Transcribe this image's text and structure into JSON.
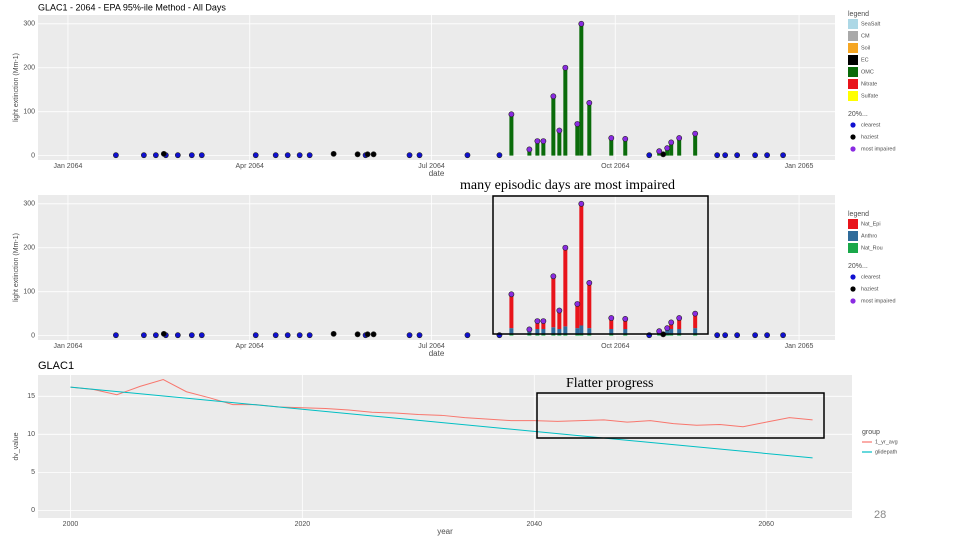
{
  "chart_data": [
    {
      "type": "stacked_bar",
      "title": "GLAC1 - 2064 - EPA 95%-ile Method - All Days",
      "xlabel": "date",
      "ylabel": "light extinction (Mm-1)",
      "x": [
        222,
        231,
        235,
        238,
        243,
        246,
        249,
        255,
        257,
        261,
        272,
        279,
        296,
        300,
        302,
        306,
        314
      ],
      "series": [
        {
          "name": "SeaSalt",
          "color": "#add8e6",
          "values": [
            0,
            0,
            0,
            0,
            0,
            0,
            0,
            0,
            0,
            0,
            0,
            0,
            0,
            0,
            0,
            0,
            0
          ]
        },
        {
          "name": "CM",
          "color": "#a9a9a9",
          "values": [
            0,
            0,
            0,
            0,
            0,
            0,
            0,
            0,
            0,
            0,
            0,
            0,
            0,
            0,
            0,
            0,
            0
          ]
        },
        {
          "name": "Soil",
          "color": "#f5a623",
          "values": [
            0,
            0,
            0,
            0,
            0,
            0,
            0,
            0,
            0,
            0,
            0,
            0,
            0,
            0,
            0,
            0,
            0
          ]
        },
        {
          "name": "EC",
          "color": "#000000",
          "values": [
            4,
            4,
            4,
            4,
            4,
            4,
            4,
            4,
            4,
            4,
            4,
            4,
            4,
            4,
            4,
            4,
            4
          ]
        },
        {
          "name": "OMC",
          "color": "#0a6b0a",
          "values": [
            90,
            10,
            29,
            29,
            131,
            53,
            196,
            68,
            296,
            116,
            36,
            34,
            6,
            13,
            26,
            36,
            46
          ]
        },
        {
          "name": "Nitrate",
          "color": "#e8141b",
          "values": [
            0,
            0,
            0,
            0,
            0,
            0,
            0,
            0,
            0,
            0,
            0,
            0,
            0,
            0,
            0,
            0,
            0
          ]
        },
        {
          "name": "Sulfate",
          "color": "#ffff00",
          "values": [
            0,
            0,
            0,
            0,
            0,
            0,
            0,
            0,
            0,
            0,
            0,
            0,
            0,
            0,
            0,
            0,
            0
          ]
        }
      ],
      "legend_title": "legend",
      "points_title": "20%...",
      "point_groups": [
        {
          "name": "clearest",
          "color": "#1010d0",
          "x": [
            24,
            38,
            44,
            49,
            55,
            62,
            67,
            94,
            104,
            110,
            116,
            121,
            149,
            171,
            176,
            200,
            216,
            291,
            325,
            329,
            335,
            344,
            350,
            358
          ],
          "y": [
            1,
            1,
            1,
            1,
            1,
            1,
            1,
            1,
            1,
            1,
            1,
            1,
            1,
            1,
            1,
            1,
            1,
            1,
            1,
            1,
            1,
            1,
            1,
            1
          ]
        },
        {
          "name": "haziest",
          "color": "#000000",
          "x": [
            48,
            133,
            145,
            150,
            153,
            298
          ],
          "y": [
            4,
            4,
            3,
            3,
            3,
            3
          ]
        },
        {
          "name": "most impaired",
          "color": "#8a2be2",
          "x": [
            222,
            231,
            235,
            238,
            243,
            246,
            249,
            255,
            257,
            261,
            272,
            279,
            296,
            300,
            302,
            306,
            314
          ],
          "y": [
            94,
            14,
            33,
            33,
            135,
            57,
            200,
            72,
            300,
            120,
            40,
            38,
            10,
            17,
            30,
            40,
            50
          ]
        }
      ],
      "xlim": [
        -15,
        384
      ],
      "xticks": [
        {
          "value": 0,
          "label": "Jan 2064"
        },
        {
          "value": 91,
          "label": "Apr 2064"
        },
        {
          "value": 182,
          "label": "Jul 2064"
        },
        {
          "value": 274,
          "label": "Oct 2064"
        },
        {
          "value": 366,
          "label": "Jan 2065"
        }
      ],
      "ylim": [
        -10,
        320
      ],
      "yticks": [
        0,
        100,
        200,
        300
      ],
      "grid": true
    },
    {
      "type": "stacked_bar",
      "xlabel": "date",
      "ylabel": "light extinction (Mm-1)",
      "x": [
        222,
        231,
        235,
        238,
        243,
        246,
        249,
        255,
        257,
        261,
        272,
        279,
        296,
        300,
        302,
        306,
        314
      ],
      "series": [
        {
          "name": "Nat_Epi",
          "color": "#e8141b",
          "values": [
            77,
            1,
            18,
            18,
            116,
            42,
            179,
            55,
            277,
            103,
            25,
            23,
            1,
            4,
            15,
            25,
            33
          ]
        },
        {
          "name": "Anthro",
          "color": "#2f6b9a",
          "values": [
            12,
            8,
            10,
            10,
            14,
            10,
            16,
            12,
            18,
            12,
            10,
            10,
            4,
            8,
            10,
            10,
            12
          ]
        },
        {
          "name": "Nat_Rou",
          "color": "#1aa84a",
          "values": [
            5,
            5,
            5,
            5,
            5,
            5,
            5,
            5,
            5,
            5,
            5,
            5,
            5,
            5,
            5,
            5,
            5
          ]
        }
      ],
      "legend_title": "legend",
      "points_title": "20%...",
      "point_groups": [
        {
          "name": "clearest",
          "color": "#1010d0",
          "x": [
            24,
            38,
            44,
            49,
            55,
            62,
            67,
            94,
            104,
            110,
            116,
            121,
            149,
            171,
            176,
            200,
            216,
            291,
            325,
            329,
            335,
            344,
            350,
            358
          ],
          "y": [
            1,
            1,
            1,
            1,
            1,
            1,
            1,
            1,
            1,
            1,
            1,
            1,
            1,
            1,
            1,
            1,
            1,
            1,
            1,
            1,
            1,
            1,
            1,
            1
          ]
        },
        {
          "name": "haziest",
          "color": "#000000",
          "x": [
            48,
            133,
            145,
            150,
            153,
            298
          ],
          "y": [
            4,
            4,
            3,
            3,
            3,
            3
          ]
        },
        {
          "name": "most impaired",
          "color": "#8a2be2",
          "x": [
            222,
            231,
            235,
            238,
            243,
            246,
            249,
            255,
            257,
            261,
            272,
            279,
            296,
            300,
            302,
            306,
            314
          ],
          "y": [
            94,
            14,
            33,
            33,
            135,
            57,
            200,
            72,
            300,
            120,
            40,
            38,
            10,
            17,
            30,
            40,
            50
          ]
        }
      ],
      "xlim": [
        -15,
        384
      ],
      "xticks": [
        {
          "value": 0,
          "label": "Jan 2064"
        },
        {
          "value": 91,
          "label": "Apr 2064"
        },
        {
          "value": 182,
          "label": "Jul 2064"
        },
        {
          "value": 274,
          "label": "Oct 2064"
        },
        {
          "value": 366,
          "label": "Jan 2065"
        }
      ],
      "ylim": [
        -10,
        320
      ],
      "yticks": [
        0,
        100,
        200,
        300
      ],
      "grid": true
    },
    {
      "type": "line",
      "title": "GLAC1",
      "xlabel": "year",
      "ylabel": "dv_value",
      "legend_title": "group",
      "series": [
        {
          "name": "1_yr_avg",
          "color": "#f8766d",
          "x": [
            2000,
            2002,
            2004,
            2006,
            2008,
            2010,
            2012,
            2014,
            2016,
            2018,
            2020,
            2022,
            2024,
            2026,
            2028,
            2030,
            2032,
            2034,
            2036,
            2038,
            2040,
            2042,
            2044,
            2046,
            2048,
            2050,
            2052,
            2054,
            2056,
            2058,
            2060,
            2062,
            2064
          ],
          "values": [
            16.2,
            15.9,
            15.2,
            16.3,
            17.2,
            15.6,
            14.8,
            13.9,
            13.9,
            13.6,
            13.5,
            13.4,
            13.2,
            12.9,
            12.8,
            12.6,
            12.5,
            12.2,
            12.0,
            11.8,
            11.8,
            11.7,
            11.8,
            11.9,
            11.6,
            11.8,
            11.4,
            11.2,
            11.3,
            11.0,
            11.6,
            12.2,
            11.9
          ]
        },
        {
          "name": "glidepath",
          "color": "#00bfc4",
          "x": [
            2000,
            2064
          ],
          "values": [
            16.2,
            6.9
          ]
        }
      ],
      "xlim": [
        1997.2,
        2067.4
      ],
      "xticks": [
        2000,
        2020,
        2040,
        2060
      ],
      "ylim": [
        -1,
        17.8
      ],
      "yticks": [
        0,
        5,
        10,
        15
      ],
      "grid": true
    }
  ],
  "annotations": [
    "many episodic days are most impaired",
    "Flatter progress"
  ],
  "page_number": "28"
}
